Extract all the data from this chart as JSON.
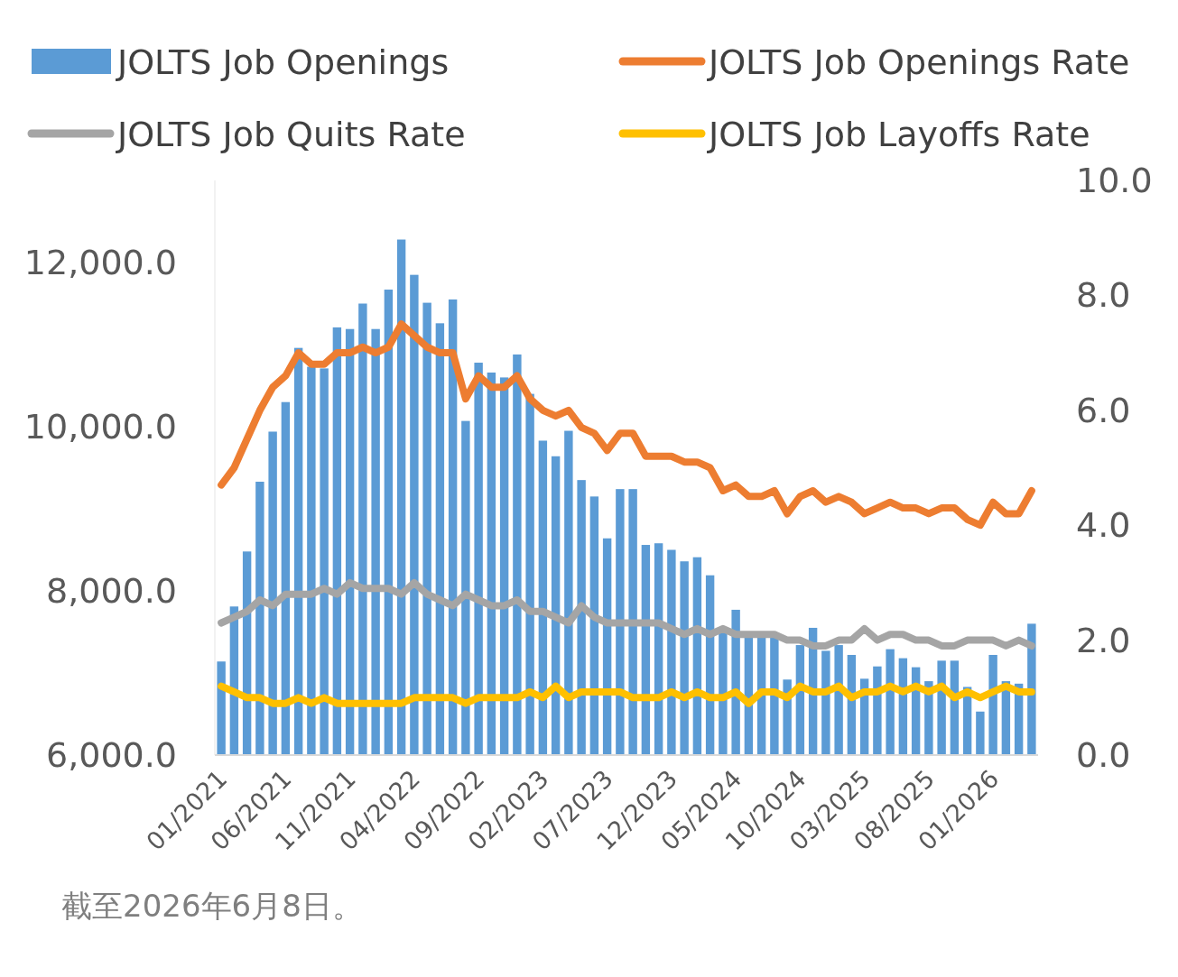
{
  "chart_data": {
    "type": "bar",
    "categories": [
      "01/2021",
      null,
      null,
      null,
      null,
      "06/2021",
      null,
      null,
      null,
      null,
      "11/2021",
      null,
      null,
      null,
      null,
      "04/2022",
      null,
      null,
      null,
      null,
      "09/2022",
      null,
      null,
      null,
      null,
      "02/2023",
      null,
      null,
      null,
      null,
      "07/2023",
      null,
      null,
      null,
      null,
      "12/2023",
      null,
      null,
      null,
      null,
      "05/2024",
      null,
      null,
      null,
      null,
      "10/2024",
      null,
      null,
      null,
      null,
      "03/2025",
      null,
      null,
      null,
      null,
      "08/2025",
      null,
      null,
      null,
      null,
      "01/2026",
      null,
      null,
      null
    ],
    "series": [
      {
        "name": "JOLTS Job Openings",
        "color": "#5b9bd5",
        "values": [
          7140,
          7810,
          8480,
          9330,
          9940,
          10300,
          10960,
          10730,
          10710,
          11210,
          11190,
          11500,
          11190,
          11670,
          12280,
          11850,
          11510,
          11260,
          11550,
          10070,
          10780,
          10660,
          10600,
          10880,
          10400,
          9830,
          9640,
          9950,
          9350,
          9150,
          8640,
          9240,
          9240,
          8560,
          8580,
          8500,
          8360,
          8410,
          8190,
          7500,
          7770,
          7450,
          7450,
          7460,
          6920,
          7340,
          7550,
          7270,
          7340,
          7220,
          6930,
          7080,
          7290,
          7180,
          7070,
          6900,
          7150,
          7150,
          6830,
          6530,
          7220,
          6900,
          6870,
          7600
        ]
      },
      {
        "name": "JOLTS Job Openings Rate",
        "type": "line",
        "axis": "y2",
        "color": "#ed7d31",
        "values": [
          4.7,
          5.0,
          5.5,
          6.0,
          6.4,
          6.6,
          7.0,
          6.8,
          6.8,
          7.0,
          7.0,
          7.1,
          7.0,
          7.1,
          7.5,
          7.3,
          7.1,
          7.0,
          7.0,
          6.2,
          6.6,
          6.4,
          6.4,
          6.6,
          6.2,
          6.0,
          5.9,
          6.0,
          5.7,
          5.6,
          5.3,
          5.6,
          5.6,
          5.2,
          5.2,
          5.2,
          5.1,
          5.1,
          5.0,
          4.6,
          4.7,
          4.5,
          4.5,
          4.6,
          4.2,
          4.5,
          4.6,
          4.4,
          4.5,
          4.4,
          4.2,
          4.3,
          4.4,
          4.3,
          4.3,
          4.2,
          4.3,
          4.3,
          4.1,
          4.0,
          4.4,
          4.2,
          4.2,
          4.6
        ]
      },
      {
        "name": "JOLTS Job Quits Rate",
        "type": "line",
        "axis": "y2",
        "color": "#a5a5a5",
        "values": [
          2.3,
          2.4,
          2.5,
          2.7,
          2.6,
          2.8,
          2.8,
          2.8,
          2.9,
          2.8,
          3.0,
          2.9,
          2.9,
          2.9,
          2.8,
          3.0,
          2.8,
          2.7,
          2.6,
          2.8,
          2.7,
          2.6,
          2.6,
          2.7,
          2.5,
          2.5,
          2.4,
          2.3,
          2.6,
          2.4,
          2.3,
          2.3,
          2.3,
          2.3,
          2.3,
          2.2,
          2.1,
          2.2,
          2.1,
          2.2,
          2.1,
          2.1,
          2.1,
          2.1,
          2.0,
          2.0,
          1.9,
          1.9,
          2.0,
          2.0,
          2.2,
          2.0,
          2.1,
          2.1,
          2.0,
          2.0,
          1.9,
          1.9,
          2.0,
          2.0,
          2.0,
          1.9,
          2.0,
          1.9
        ]
      },
      {
        "name": "JOLTS Job Layoffs Rate",
        "type": "line",
        "axis": "y2",
        "color": "#ffc000",
        "values": [
          1.2,
          1.1,
          1.0,
          1.0,
          0.9,
          0.9,
          1.0,
          0.9,
          1.0,
          0.9,
          0.9,
          0.9,
          0.9,
          0.9,
          0.9,
          1.0,
          1.0,
          1.0,
          1.0,
          0.9,
          1.0,
          1.0,
          1.0,
          1.0,
          1.1,
          1.0,
          1.2,
          1.0,
          1.1,
          1.1,
          1.1,
          1.1,
          1.0,
          1.0,
          1.0,
          1.1,
          1.0,
          1.1,
          1.0,
          1.0,
          1.1,
          0.9,
          1.1,
          1.1,
          1.0,
          1.2,
          1.1,
          1.1,
          1.2,
          1.0,
          1.1,
          1.1,
          1.2,
          1.1,
          1.2,
          1.1,
          1.2,
          1.0,
          1.1,
          1.0,
          1.1,
          1.2,
          1.1,
          1.1
        ]
      }
    ],
    "ylim": [
      6000,
      13000
    ],
    "yticks": [
      {
        "value": 6000,
        "label": "6,000.0"
      },
      {
        "value": 8000,
        "label": "8,000.0"
      },
      {
        "value": 10000,
        "label": "10,000.0"
      },
      {
        "value": 12000,
        "label": "12,000.0"
      }
    ],
    "y2lim": [
      0,
      10
    ],
    "y2ticks": [
      {
        "value": 0,
        "label": "0.0"
      },
      {
        "value": 2,
        "label": "2.0"
      },
      {
        "value": 4,
        "label": "4.0"
      },
      {
        "value": 6,
        "label": "6.0"
      },
      {
        "value": 8,
        "label": "8.0"
      },
      {
        "value": 10,
        "label": "10.0"
      }
    ],
    "legend": "top",
    "annotations": [
      "截至2026年6月8日。"
    ]
  }
}
